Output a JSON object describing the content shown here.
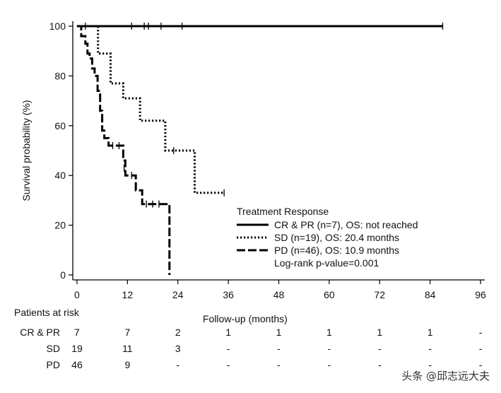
{
  "chart_data": {
    "type": "line",
    "subtype": "kaplan-meier",
    "title": "",
    "xlabel": "Follow-up (months)",
    "ylabel": "Survival probability (%)",
    "xlim": [
      -1,
      97
    ],
    "ylim": [
      -2,
      102
    ],
    "xticks": [
      0,
      12,
      24,
      36,
      48,
      60,
      72,
      84,
      96
    ],
    "yticks": [
      0,
      20,
      40,
      60,
      80,
      100
    ],
    "grid": false,
    "legend": {
      "title": "Treatment Response",
      "placement": "bottom-center",
      "note": "Log-rank p-value=0.001"
    },
    "series": [
      {
        "name": "CR & PR (n=7), OS: not reached",
        "style": "solid",
        "color": "#000000",
        "steps": [
          [
            0,
            100
          ],
          [
            87,
            100
          ]
        ],
        "censored": [
          [
            2,
            100
          ],
          [
            13,
            100
          ],
          [
            16,
            100
          ],
          [
            17,
            100
          ],
          [
            20,
            100
          ],
          [
            25,
            100
          ],
          [
            87,
            100
          ]
        ]
      },
      {
        "name": "SD (n=19), OS: 20.4 months",
        "style": "dotted",
        "color": "#000000",
        "steps": [
          [
            0,
            100
          ],
          [
            5,
            100
          ],
          [
            5,
            89
          ],
          [
            8,
            89
          ],
          [
            8,
            77
          ],
          [
            11,
            77
          ],
          [
            11,
            71
          ],
          [
            15,
            71
          ],
          [
            15,
            62
          ],
          [
            21,
            62
          ],
          [
            21,
            50
          ],
          [
            28,
            50
          ],
          [
            28,
            33
          ],
          [
            35,
            33
          ]
        ],
        "censored": [
          [
            23,
            50
          ],
          [
            35,
            33
          ]
        ]
      },
      {
        "name": "PD (n=46), OS: 10.9 months",
        "style": "dashed",
        "color": "#000000",
        "steps": [
          [
            0,
            100
          ],
          [
            1,
            100
          ],
          [
            1,
            96
          ],
          [
            2,
            96
          ],
          [
            2,
            93
          ],
          [
            2.5,
            93
          ],
          [
            2.5,
            89
          ],
          [
            3,
            89
          ],
          [
            3,
            87
          ],
          [
            3.6,
            87
          ],
          [
            3.6,
            83
          ],
          [
            4.2,
            83
          ],
          [
            4.2,
            80
          ],
          [
            4.9,
            80
          ],
          [
            4.9,
            74
          ],
          [
            5.5,
            74
          ],
          [
            5.5,
            66
          ],
          [
            6,
            66
          ],
          [
            6,
            58
          ],
          [
            6.5,
            58
          ],
          [
            6.5,
            55
          ],
          [
            7.5,
            55
          ],
          [
            7.5,
            52
          ],
          [
            11,
            52
          ],
          [
            11,
            46
          ],
          [
            11.5,
            46
          ],
          [
            11.5,
            40
          ],
          [
            14,
            40
          ],
          [
            14,
            34
          ],
          [
            15.5,
            34
          ],
          [
            15.5,
            28.5
          ],
          [
            22,
            28.5
          ],
          [
            22,
            0
          ]
        ],
        "censored": [
          [
            8.5,
            52
          ],
          [
            10,
            52
          ],
          [
            11.2,
            43
          ],
          [
            13,
            40
          ],
          [
            16.5,
            28.5
          ],
          [
            18,
            28.5
          ],
          [
            19.5,
            28.5
          ]
        ]
      }
    ],
    "risk_table": {
      "title": "Patients at risk",
      "times": [
        0,
        12,
        24,
        36,
        48,
        60,
        72,
        84,
        96
      ],
      "rows": [
        {
          "label": "CR & PR",
          "values": [
            "7",
            "7",
            "2",
            "1",
            "1",
            "1",
            "1",
            "1",
            "-"
          ]
        },
        {
          "label": "SD",
          "values": [
            "19",
            "11",
            "3",
            "-",
            "-",
            "-",
            "-",
            "-",
            "-"
          ]
        },
        {
          "label": "PD",
          "values": [
            "46",
            "9",
            "-",
            "-",
            "-",
            "-",
            "-",
            "-",
            "-"
          ]
        }
      ]
    }
  },
  "watermark": "头条 @邱志远大夫"
}
